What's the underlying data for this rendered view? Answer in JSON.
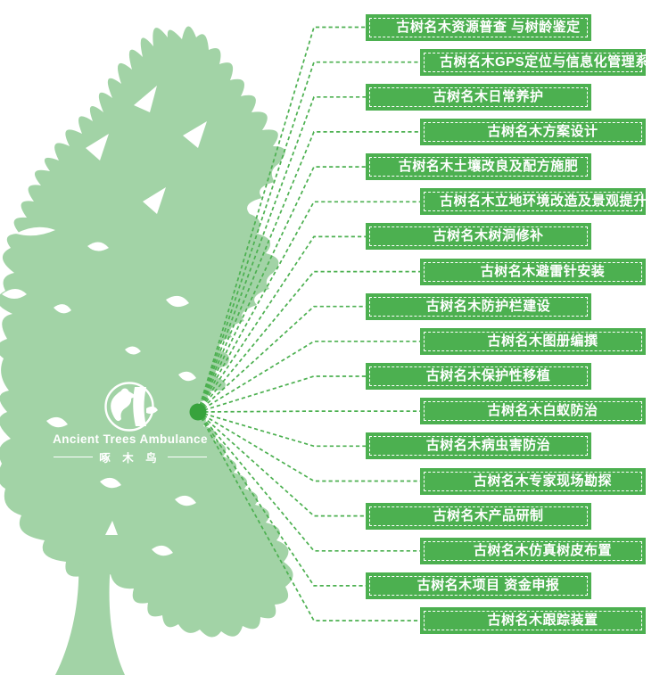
{
  "logo": {
    "title": "Ancient Trees Ambulance",
    "subtitle_cn": "啄 木 鸟"
  },
  "hub_icon": "tree-hub-dot",
  "labels": [
    {
      "text": "古树名木资源普查 与树龄鉴定"
    },
    {
      "text": "古树名木GPS定位与信息化管理系统开发"
    },
    {
      "text": "古树名木日常养护"
    },
    {
      "text": "古树名木方案设计"
    },
    {
      "text": "古树名木土壤改良及配方施肥"
    },
    {
      "text": "古树名木立地环境改造及景观提升"
    },
    {
      "text": "古树名木树洞修补"
    },
    {
      "text": "古树名木避雷针安装"
    },
    {
      "text": "古树名木防护栏建设"
    },
    {
      "text": "古树名木图册编撰"
    },
    {
      "text": "古树名木保护性移植"
    },
    {
      "text": "古树名木白蚁防治"
    },
    {
      "text": "古树名木病虫害防治"
    },
    {
      "text": "古树名木专家现场勘探"
    },
    {
      "text": "古树名木产品研制"
    },
    {
      "text": "古树名木仿真树皮布置"
    },
    {
      "text": "古树名木项目 资金申报"
    },
    {
      "text": "古树名木跟踪装置"
    }
  ],
  "colors": {
    "label_green": "#4cb050",
    "tree_green": "#a2d3a6",
    "line_green": "#4cb050",
    "dot_green": "#37a33c",
    "label_text": "#ffffff"
  }
}
